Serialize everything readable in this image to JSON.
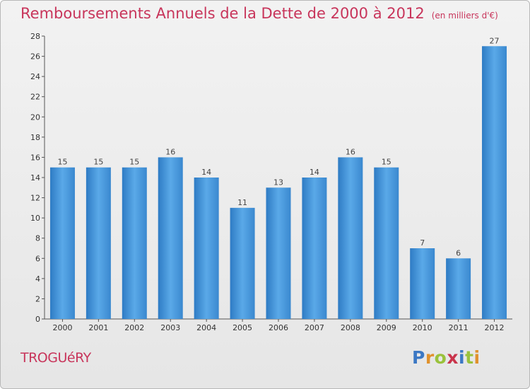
{
  "title": "Remboursements Annuels de la Dette de 2000 à 2012",
  "unit": "(en milliers d'€)",
  "commune": "TROGUéRY",
  "logo": {
    "p": "P",
    "r": "r",
    "o": "o",
    "x": "x",
    "i": "i",
    "t": "t",
    "i2": "i"
  },
  "chart_data": {
    "type": "bar",
    "categories": [
      "2000",
      "2001",
      "2002",
      "2003",
      "2004",
      "2005",
      "2006",
      "2007",
      "2008",
      "2009",
      "2010",
      "2011",
      "2012"
    ],
    "values": [
      15,
      15,
      15,
      16,
      14,
      11,
      13,
      14,
      16,
      15,
      7,
      6,
      27
    ],
    "ylim": [
      0,
      28
    ],
    "yticks": [
      0,
      2,
      4,
      6,
      8,
      10,
      12,
      14,
      16,
      18,
      20,
      22,
      24,
      26,
      28
    ],
    "bar_color": "#4a9be0",
    "grid": false,
    "data_labels": true
  }
}
